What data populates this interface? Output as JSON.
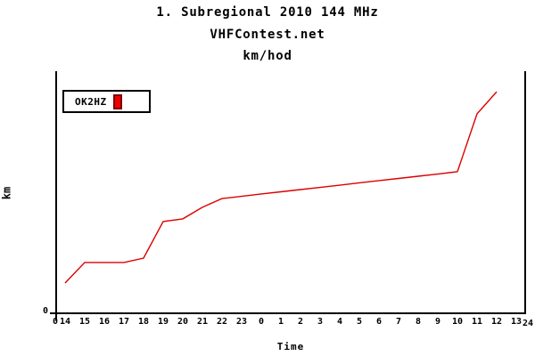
{
  "header": {
    "title": "1. Subregional 2010 144 MHz",
    "site": "VHFContest.net",
    "unit": "km/hod"
  },
  "legend": {
    "station": "OK2HZ",
    "swatch_fill": "#ee0000",
    "swatch_border": "#800000"
  },
  "axes": {
    "y_label": "km",
    "x_label": "Time",
    "y_zero_label": "0",
    "x_origin_label": "0",
    "x_end_label": "24"
  },
  "colors": {
    "line": "#dd0000",
    "axis": "#000000",
    "text": "#000000",
    "background": "#ffffff"
  },
  "chart_data": {
    "type": "line",
    "title": "1. Subregional 2010 144 MHz",
    "subtitle": "VHFContest.net",
    "units_line": "km/hod",
    "xlabel": "Time",
    "ylabel": "km",
    "grid": false,
    "legend_position": "top-left-inside",
    "x_tick_labels": [
      "14",
      "15",
      "16",
      "17",
      "18",
      "19",
      "20",
      "21",
      "22",
      "23",
      "0",
      "1",
      "2",
      "3",
      "4",
      "5",
      "6",
      "7",
      "8",
      "9",
      "10",
      "11",
      "12",
      "13"
    ],
    "x_axis_start_label": "0",
    "x_axis_end_label": "24",
    "y_tick_labels": [
      "0"
    ],
    "value_note": "only y=0 is labeled; series values estimated as percent of visible axis height",
    "series": [
      {
        "name": "OK2HZ",
        "color": "#dd0000",
        "hours": [
          14,
          15,
          16,
          17,
          18,
          19,
          20,
          21,
          22,
          23,
          0,
          1,
          2,
          3,
          4,
          5,
          6,
          7,
          8,
          9,
          10,
          11,
          12
        ],
        "values_pct_of_axis": [
          12.5,
          21,
          21,
          21,
          22.8,
          37.9,
          39,
          43.8,
          47.4,
          48.3,
          49.3,
          50.2,
          51.1,
          52,
          52.9,
          53.9,
          54.8,
          55.7,
          56.6,
          57.5,
          58.5,
          82.4,
          91.5
        ]
      }
    ]
  }
}
